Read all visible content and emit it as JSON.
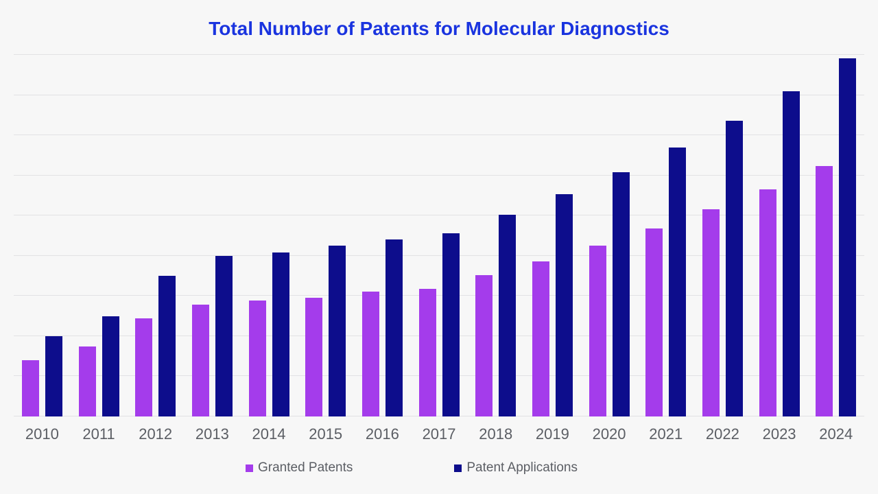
{
  "title": "Total Number of Patents for Molecular Diagnostics",
  "colors": {
    "background": "#F7F7F7",
    "gridline": "#E2E2E4",
    "title_color": "#1A34DF",
    "axis_label": "#5B5E64",
    "granted": "#A43CEB",
    "applications": "#0D0D8C"
  },
  "legend": [
    {
      "label": "Granted Patents",
      "color_key": "granted"
    },
    {
      "label": "Patent Applications",
      "color_key": "applications"
    }
  ],
  "chart_data": {
    "type": "bar",
    "title": "Total Number of Patents for Molecular Diagnostics",
    "xlabel": "",
    "ylabel": "",
    "categories": [
      "2010",
      "2011",
      "2012",
      "2013",
      "2014",
      "2015",
      "2016",
      "2017",
      "2018",
      "2019",
      "2020",
      "2021",
      "2022",
      "2023",
      "2024"
    ],
    "series": [
      {
        "name": "Granted Patents",
        "values": [
          700,
          870,
          1220,
          1390,
          1440,
          1480,
          1550,
          1590,
          1760,
          1930,
          2130,
          2340,
          2580,
          2830,
          3120
        ]
      },
      {
        "name": "Patent Applications",
        "values": [
          1000,
          1250,
          1750,
          2000,
          2040,
          2130,
          2200,
          2280,
          2510,
          2770,
          3040,
          3350,
          3680,
          4050,
          4460
        ]
      }
    ],
    "ylim": [
      0,
      4500
    ],
    "gridline_interval": 500,
    "y_axis_labels_visible": false,
    "grid": "horizontal",
    "legend_position": "bottom"
  }
}
